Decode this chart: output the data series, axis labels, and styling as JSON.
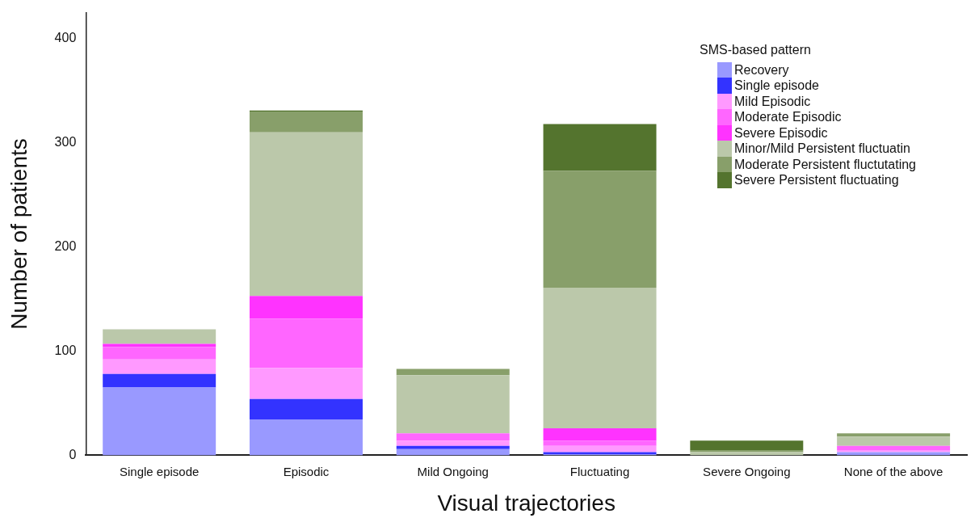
{
  "chart_data": {
    "type": "bar",
    "stacked": true,
    "xlabel": "Visual trajectories",
    "ylabel": "Number of patients",
    "legend_title": "SMS-based pattern",
    "legend": "top right",
    "grid": false,
    "categories": [
      "Single episode",
      "Episodic",
      "Mild Ongoing",
      "Fluctuating",
      "Severe Ongoing",
      "None of the above"
    ],
    "ylim": [
      0,
      425
    ],
    "yticks": [
      0,
      100,
      200,
      300,
      400
    ],
    "series": [
      {
        "name": "Recovery",
        "color": "#9999ff",
        "values": [
          65,
          34,
          6,
          1,
          0,
          3
        ]
      },
      {
        "name": "Single episode",
        "color": "#3333ff",
        "values": [
          13,
          20,
          3,
          2,
          0,
          0
        ]
      },
      {
        "name": "Mild Episodic",
        "color": "#ff99ff",
        "values": [
          14,
          30,
          5,
          6,
          0,
          2
        ]
      },
      {
        "name": "Moderate Episodic",
        "color": "#ff66ff",
        "values": [
          12,
          47,
          7,
          5,
          0,
          4
        ]
      },
      {
        "name": "Severe Episodic",
        "color": "#ff33ff",
        "values": [
          3,
          22,
          0,
          12,
          0,
          0
        ]
      },
      {
        "name": "Minor/Mild Persistent fluctuatin",
        "color": "#bbc8aa",
        "values": [
          14,
          157,
          56,
          135,
          3,
          9
        ]
      },
      {
        "name": "Moderate Persistent fluctutating",
        "color": "#889f6a",
        "values": [
          0,
          20,
          6,
          112,
          2,
          3
        ]
      },
      {
        "name": "Severe Persistent fluctuating",
        "color": "#54742e",
        "values": [
          0,
          1,
          0,
          45,
          9,
          0
        ]
      }
    ]
  }
}
